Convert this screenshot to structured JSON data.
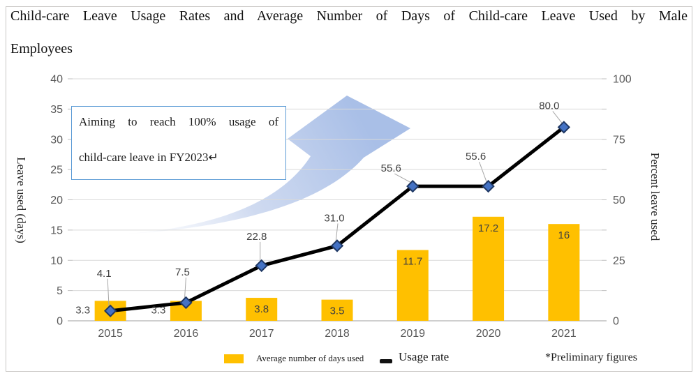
{
  "title": {
    "line1": "Child-care Leave Usage Rates and Average Number of Days of Child-care Leave Used by Male",
    "line2": "Employees"
  },
  "annotation": {
    "line1": "Aiming to reach 100% usage of",
    "line2": "child-care leave in FY2023↵"
  },
  "legend": {
    "bar_label": "Average number of days used",
    "line_label": "Usage rate"
  },
  "footnote": "*Preliminary figures",
  "colors": {
    "bar": "#FFC000",
    "line": "#000000",
    "marker_fill": "#4472C4",
    "marker_stroke": "#1F3864",
    "gridline": "#D9D9D9",
    "axis_line": "#BFBFBF",
    "tick_text": "#595959",
    "data_label": "#404040",
    "annotation_border": "#5B9BD5",
    "arrow": "#AEC3E8"
  },
  "chart_data": {
    "type": "bar+line",
    "categories": [
      "2015",
      "2016",
      "2017",
      "2018",
      "2019",
      "2020",
      "2021"
    ],
    "series": [
      {
        "name": "Average number of days used",
        "type": "bar",
        "axis": "left",
        "values": [
          3.3,
          3.3,
          3.8,
          3.5,
          11.7,
          17.2,
          16
        ],
        "labels": [
          "3.3",
          "3.3",
          "3.8",
          "3.5",
          "11.7",
          "17.2",
          "16"
        ],
        "label_placement": [
          "left",
          "left",
          "inside",
          "inside",
          "inside",
          "inside",
          "inside"
        ],
        "color": "#FFC000"
      },
      {
        "name": "Usage rate",
        "type": "line",
        "axis": "right",
        "values": [
          4.1,
          7.5,
          22.8,
          31.0,
          55.6,
          55.6,
          80.0
        ],
        "labels": [
          "4.1",
          "7.5",
          "22.8",
          "31.0",
          "55.6",
          "55.6",
          "80.0"
        ],
        "label_offsets": [
          [
            -9,
            -54
          ],
          [
            -5,
            -44
          ],
          [
            -7,
            -42
          ],
          [
            -4,
            -40
          ],
          [
            -31,
            -26
          ],
          [
            -18,
            -43
          ],
          [
            -21,
            -31
          ]
        ],
        "color": "#000000",
        "marker_fill": "#4472C4",
        "marker_stroke": "#1F3864"
      }
    ],
    "left_axis": {
      "title": "Leave used (days)",
      "min": 0,
      "max": 40,
      "ticks": [
        0,
        5,
        10,
        15,
        20,
        25,
        30,
        35,
        40
      ]
    },
    "right_axis": {
      "title": "Percent leave used",
      "min": 0,
      "max": 100,
      "ticks": [
        0,
        25,
        50,
        75,
        100
      ]
    },
    "grid": true,
    "legend_position": "bottom"
  }
}
